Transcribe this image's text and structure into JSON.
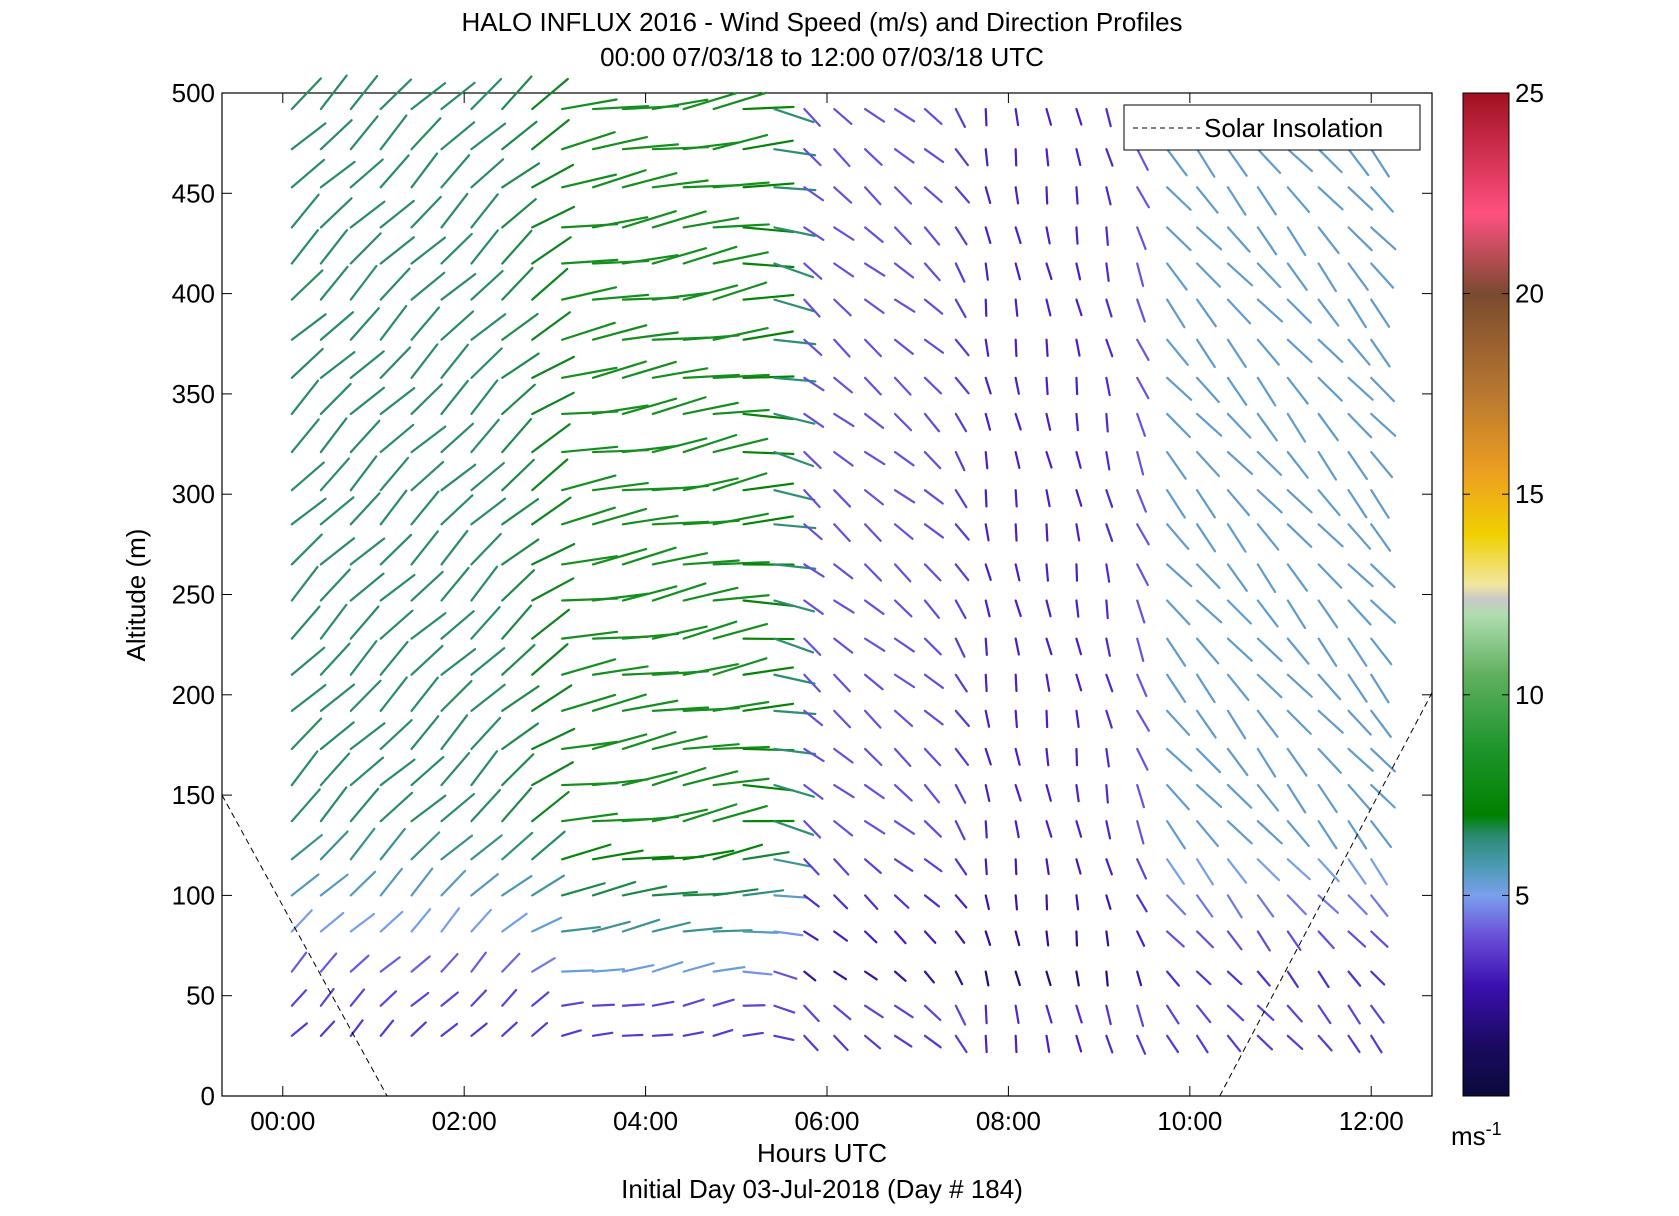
{
  "chart_data": {
    "type": "wind-barb-field",
    "title": "HALO INFLUX 2016 - Wind Speed (m/s) and Direction Profiles",
    "subtitle": "00:00 07/03/18 to 12:00 07/03/18  UTC",
    "xlabel": "Hours UTC",
    "xlabel2": "Initial Day 03-Jul-2018 (Day # 184)",
    "ylabel": "Altitude (m)",
    "xlim": [
      -0.67,
      12.67
    ],
    "ylim": [
      0,
      500
    ],
    "x_ticks": [
      0,
      2,
      4,
      6,
      8,
      10,
      12
    ],
    "x_tick_labels": [
      "00:00",
      "02:00",
      "04:00",
      "06:00",
      "08:00",
      "10:00",
      "12:00"
    ],
    "y_ticks": [
      0,
      50,
      100,
      150,
      200,
      250,
      300,
      350,
      400,
      450,
      500
    ],
    "y_tick_labels": [
      "0",
      "50",
      "100",
      "150",
      "200",
      "250",
      "300",
      "350",
      "400",
      "450",
      "500"
    ],
    "legend": {
      "entries": [
        "Solar Insolation"
      ],
      "placement": "top-right"
    },
    "colorbar": {
      "range": [
        0,
        25
      ],
      "ticks": [
        5,
        10,
        15,
        20,
        25
      ],
      "tick_labels": [
        "5",
        "10",
        "15",
        "20",
        "25"
      ],
      "unit_label": "ms",
      "unit_exponent": "-1"
    },
    "solar_insolation": {
      "style": "dashed",
      "segments": [
        [
          [
            -0.67,
            150
          ],
          [
            1.15,
            0
          ]
        ],
        [
          [
            10.33,
            0
          ],
          [
            12.67,
            201
          ]
        ]
      ]
    },
    "time_columns_hours": [
      0.1,
      0.42,
      0.75,
      1.08,
      1.42,
      1.75,
      2.08,
      2.42,
      2.75,
      3.08,
      3.42,
      3.75,
      4.08,
      4.42,
      4.75,
      5.08,
      5.42,
      5.75,
      6.08,
      6.42,
      6.75,
      7.08,
      7.42,
      7.75,
      8.08,
      8.42,
      8.75,
      9.08,
      9.42,
      9.75,
      10.08,
      10.42,
      10.75,
      11.08,
      11.42,
      11.75,
      12.0
    ],
    "altitudes_m": [
      30,
      45,
      62,
      82,
      100,
      118,
      137,
      155,
      173,
      192,
      210,
      228,
      247,
      265,
      285,
      302,
      321,
      340,
      358,
      377,
      397,
      415,
      433,
      453,
      472,
      492
    ],
    "wind_regimes": [
      {
        "hours": [
          0.0,
          3.0
        ],
        "direction_deg": 225,
        "speed_ms": 6.5,
        "note_low": "speed ~3 below 60 m"
      },
      {
        "hours": [
          3.0,
          5.5
        ],
        "direction_deg": 260,
        "speed_ms": 8.5
      },
      {
        "hours": [
          5.5,
          7.5
        ],
        "direction_deg": 310,
        "speed_ms": 3.5
      },
      {
        "hours": [
          7.5,
          9.5
        ],
        "direction_deg": 350,
        "speed_ms": 2.5
      },
      {
        "hours": [
          9.5,
          12.0
        ],
        "direction_deg": 320,
        "speed_ms": 5.0
      }
    ]
  }
}
